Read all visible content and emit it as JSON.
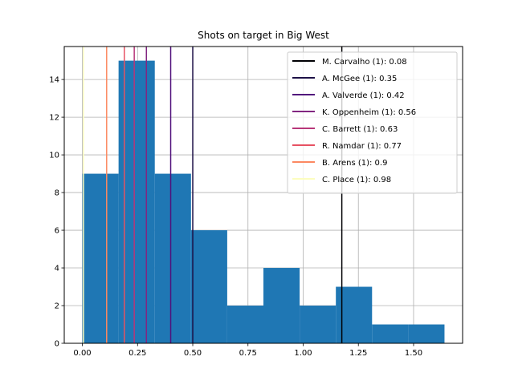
{
  "chart_data": {
    "type": "bar",
    "title": "Shots on target in Big West",
    "xlabel": "",
    "ylabel": "",
    "xlim": [
      -0.082,
      1.722
    ],
    "ylim": [
      0,
      15.75
    ],
    "xticks": [
      0.0,
      0.25,
      0.5,
      0.75,
      1.0,
      1.25,
      1.5
    ],
    "xtick_labels": [
      "0.00",
      "0.25",
      "0.50",
      "0.75",
      "1.00",
      "1.25",
      "1.50"
    ],
    "yticks": [
      0,
      2,
      4,
      6,
      8,
      10,
      12,
      14
    ],
    "ytick_labels": [
      "0",
      "2",
      "4",
      "6",
      "8",
      "10",
      "12",
      "14"
    ],
    "grid": true,
    "bar_color": "#1f77b4",
    "histogram": {
      "bin_edges": [
        0.0,
        0.164,
        0.328,
        0.492,
        0.656,
        0.82,
        0.984,
        1.148,
        1.312,
        1.476,
        1.64
      ],
      "counts": [
        9,
        15,
        9,
        6,
        2,
        4,
        2,
        3,
        1,
        1
      ]
    },
    "legend_position": "upper right",
    "vlines": [
      {
        "label": "M. Carvalho (1): 0.08",
        "x": 1.175,
        "color": "#000004"
      },
      {
        "label": "A. McGee (1): 0.35",
        "x": 0.5,
        "color": "#1d1147"
      },
      {
        "label": "A. Valverde (1): 0.42",
        "x": 0.4,
        "color": "#51127c"
      },
      {
        "label": "K. Oppenheim (1): 0.56",
        "x": 0.29,
        "color": "#822681"
      },
      {
        "label": "C. Barrett (1): 0.63",
        "x": 0.235,
        "color": "#b73779"
      },
      {
        "label": "R. Namdar (1): 0.77",
        "x": 0.19,
        "color": "#e75263"
      },
      {
        "label": "B. Arens (1): 0.9",
        "x": 0.11,
        "color": "#fc8961"
      },
      {
        "label": "C. Place (1): 0.98",
        "x": 0.005,
        "color": "#fcfdbf"
      }
    ]
  }
}
